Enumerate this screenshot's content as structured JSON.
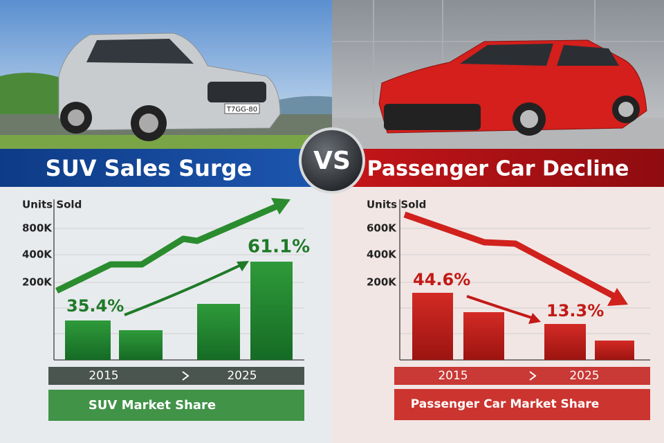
{
  "vs": "VS",
  "left_car_plate": "T7GG-80",
  "panels": [
    {
      "title": "SUV Sales Surge",
      "axis_label": "Units Sold",
      "ticks": [
        "800K",
        "400K",
        "200K"
      ],
      "callouts": [
        "35.4%",
        "61.1%"
      ],
      "years": [
        "2015",
        "2025"
      ],
      "caption": "SUV Market Share"
    },
    {
      "title": "Passenger Car Decline",
      "axis_label": "Units Sold",
      "ticks": [
        "600K",
        "400K",
        "200K"
      ],
      "callouts": [
        "44.6%",
        "13.3%"
      ],
      "years": [
        "2015",
        "2025"
      ],
      "caption": "Passenger Car Market Share"
    }
  ]
}
